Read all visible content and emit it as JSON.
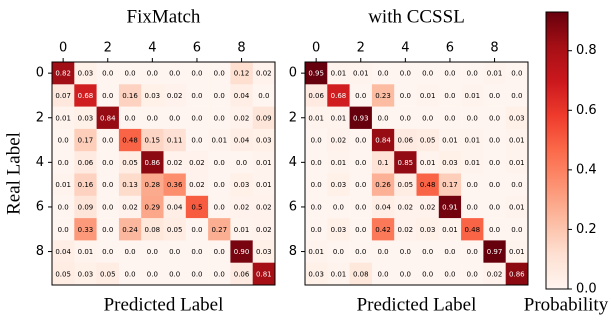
{
  "chart_data": [
    {
      "type": "heatmap",
      "title": "FixMatch",
      "xlabel": "Predicted Label",
      "ylabel": "Real Label",
      "xticks": [
        0,
        2,
        4,
        6,
        8
      ],
      "yticks": [
        0,
        2,
        4,
        6,
        8
      ],
      "values": [
        [
          0.82,
          0.03,
          0,
          0,
          0,
          0,
          0,
          0,
          0.12,
          0.02
        ],
        [
          0.07,
          0.68,
          0,
          0.16,
          0.03,
          0.02,
          0,
          0,
          0.04,
          0
        ],
        [
          0.01,
          0.03,
          0.84,
          0,
          0,
          0,
          0,
          0,
          0.02,
          0.09
        ],
        [
          0,
          0.17,
          0,
          0.48,
          0.15,
          0.11,
          0,
          0.01,
          0.04,
          0.03
        ],
        [
          0,
          0.06,
          0,
          0.05,
          0.86,
          0.02,
          0.02,
          0,
          0,
          0.01
        ],
        [
          0.01,
          0.16,
          0,
          0.13,
          0.28,
          0.36,
          0.02,
          0,
          0.03,
          0.01
        ],
        [
          0,
          0.09,
          0,
          0.02,
          0.29,
          0.04,
          0.5,
          0,
          0.02,
          0.02
        ],
        [
          0,
          0.33,
          0,
          0.24,
          0.08,
          0.05,
          0,
          0.27,
          0.01,
          0.02
        ],
        [
          0.04,
          0.01,
          0,
          0,
          0,
          0,
          0,
          0,
          0.9,
          0.03
        ],
        [
          0.05,
          0.03,
          0.05,
          0,
          0,
          0,
          0,
          0,
          0.06,
          0.81
        ]
      ],
      "value_labels": [
        [
          "0.82",
          "0.03",
          "0.0",
          "0.0",
          "0.0",
          "0.0",
          "0.0",
          "0.0",
          "0.12",
          "0.02"
        ],
        [
          "0.07",
          "0.68",
          "0.0",
          "0.16",
          "0.03",
          "0.02",
          "0.0",
          "0.0",
          "0.04",
          "0.0"
        ],
        [
          "0.01",
          "0.03",
          "0.84",
          "0.0",
          "0.0",
          "0.0",
          "0.0",
          "0.0",
          "0.02",
          "0.09"
        ],
        [
          "0.0",
          "0.17",
          "0.0",
          "0.48",
          "0.15",
          "0.11",
          "0.0",
          "0.01",
          "0.04",
          "0.03"
        ],
        [
          "0.0",
          "0.06",
          "0.0",
          "0.05",
          "0.86",
          "0.02",
          "0.02",
          "0.0",
          "0.0",
          "0.01"
        ],
        [
          "0.01",
          "0.16",
          "0.0",
          "0.13",
          "0.28",
          "0.36",
          "0.02",
          "0.0",
          "0.03",
          "0.01"
        ],
        [
          "0.0",
          "0.09",
          "0.0",
          "0.02",
          "0.29",
          "0.04",
          "0.5",
          "0.0",
          "0.02",
          "0.02"
        ],
        [
          "0.0",
          "0.33",
          "0.0",
          "0.24",
          "0.08",
          "0.05",
          "0.0",
          "0.27",
          "0.01",
          "0.02"
        ],
        [
          "0.04",
          "0.01",
          "0.0",
          "0.0",
          "0.0",
          "0.0",
          "0.0",
          "0.0",
          "0.90",
          "0.03"
        ],
        [
          "0.05",
          "0.03",
          "0.05",
          "0.0",
          "0.0",
          "0.0",
          "0.0",
          "0.0",
          "0.06",
          "0.81"
        ]
      ]
    },
    {
      "type": "heatmap",
      "title": "with CCSSL",
      "xlabel": "Predicted Label",
      "xticks": [
        0,
        2,
        4,
        6,
        8
      ],
      "yticks": [
        0,
        2,
        4,
        6,
        8
      ],
      "values": [
        [
          0.95,
          0.01,
          0.01,
          0,
          0,
          0,
          0,
          0,
          0.01,
          0
        ],
        [
          0.06,
          0.68,
          0,
          0.23,
          0,
          0.01,
          0,
          0.01,
          0,
          0
        ],
        [
          0.01,
          0.01,
          0.93,
          0,
          0,
          0,
          0,
          0,
          0,
          0.03
        ],
        [
          0,
          0.02,
          0,
          0.84,
          0.06,
          0.05,
          0.01,
          0.01,
          0,
          0.01
        ],
        [
          0,
          0.01,
          0,
          0.1,
          0.85,
          0.01,
          0.03,
          0.01,
          0,
          0.01
        ],
        [
          0,
          0.03,
          0,
          0.26,
          0.05,
          0.48,
          0.17,
          0,
          0,
          0
        ],
        [
          0,
          0,
          0,
          0.04,
          0.02,
          0.02,
          0.91,
          0,
          0,
          0.01
        ],
        [
          0,
          0.03,
          0,
          0.42,
          0.02,
          0.03,
          0.01,
          0.48,
          0,
          0
        ],
        [
          0.01,
          0,
          0,
          0,
          0,
          0,
          0,
          0,
          0.97,
          0.01
        ],
        [
          0.03,
          0.01,
          0.08,
          0,
          0,
          0,
          0,
          0,
          0.02,
          0.86
        ]
      ],
      "value_labels": [
        [
          "0.95",
          "0.01",
          "0.01",
          "0.0",
          "0.0",
          "0.0",
          "0.0",
          "0.0",
          "0.01",
          "0.0"
        ],
        [
          "0.06",
          "0.68",
          "0.0",
          "0.23",
          "0.0",
          "0.01",
          "0.0",
          "0.01",
          "0.0",
          "0.0"
        ],
        [
          "0.01",
          "0.01",
          "0.93",
          "0.0",
          "0.0",
          "0.0",
          "0.0",
          "0.0",
          "0.0",
          "0.03"
        ],
        [
          "0.0",
          "0.02",
          "0.0",
          "0.84",
          "0.06",
          "0.05",
          "0.01",
          "0.01",
          "0.0",
          "0.01"
        ],
        [
          "0.0",
          "0.01",
          "0.0",
          "0.1",
          "0.85",
          "0.01",
          "0.03",
          "0.01",
          "0.0",
          "0.01"
        ],
        [
          "0.0",
          "0.03",
          "0.0",
          "0.26",
          "0.05",
          "0.48",
          "0.17",
          "0.0",
          "0.0",
          "0.0"
        ],
        [
          "0.0",
          "0.0",
          "0.0",
          "0.04",
          "0.02",
          "0.02",
          "0.91",
          "0.0",
          "0.0",
          "0.01"
        ],
        [
          "0.0",
          "0.03",
          "0.0",
          "0.42",
          "0.02",
          "0.03",
          "0.01",
          "0.48",
          "0.0",
          "0.0"
        ],
        [
          "0.01",
          "0.0",
          "0.0",
          "0.0",
          "0.0",
          "0.0",
          "0.0",
          "0.0",
          "0.97",
          "0.01"
        ],
        [
          "0.03",
          "0.01",
          "0.08",
          "0.0",
          "0.0",
          "0.0",
          "0.0",
          "0.0",
          "0.02",
          "0.86"
        ]
      ]
    },
    {
      "type": "colorbar",
      "label": "Probability",
      "clim": [
        0,
        0.93
      ],
      "ticks": [
        {
          "value": 0,
          "label": "0.0"
        },
        0.2,
        0.4,
        0.6,
        0.8
      ],
      "colors": [
        "#fff5f0",
        "#fee0d2",
        "#fcbba1",
        "#fc9272",
        "#fb6a4a",
        "#ef3b2c",
        "#cb181d",
        "#a50f15",
        "#67000d"
      ]
    }
  ]
}
